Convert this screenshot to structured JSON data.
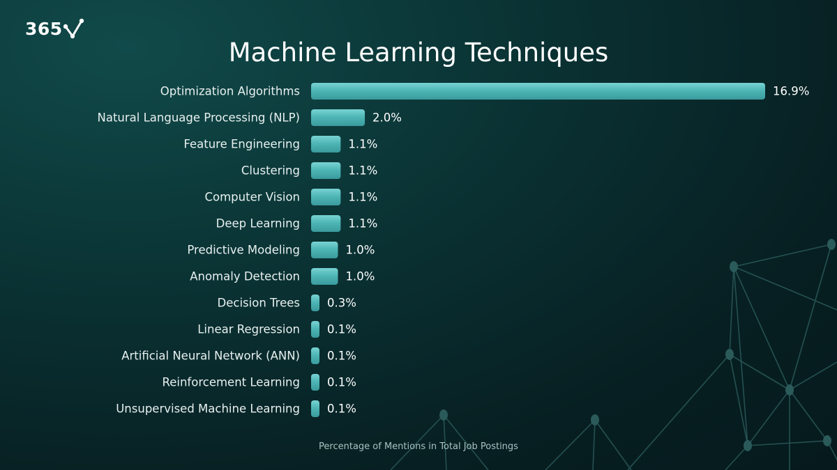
{
  "brand": {
    "logo_text": "365",
    "logo_icon": "check-network-icon"
  },
  "colors": {
    "bar": "#4fb7b7",
    "bar_highlight": "#73cfcf",
    "background": "#0b3536",
    "network_lines": "#2b5a5a"
  },
  "chart_data": {
    "type": "bar",
    "orientation": "horizontal",
    "title": "Machine Learning Techniques",
    "xlabel": "Percentage of Mentions in Total Job Postings",
    "ylabel": "",
    "xlim": [
      0,
      16.9
    ],
    "grid": false,
    "legend": "none",
    "categories": [
      "Optimization Algorithms",
      "Natural Language Processing (NLP)",
      "Feature Engineering",
      "Clustering",
      "Computer Vision",
      "Deep Learning",
      "Predictive Modeling",
      "Anomaly Detection",
      "Decision Trees",
      "Linear Regression",
      "Artificial Neural Network (ANN)",
      "Reinforcement Learning",
      "Unsupervised Machine Learning"
    ],
    "values": [
      16.9,
      2.0,
      1.1,
      1.1,
      1.1,
      1.1,
      1.0,
      1.0,
      0.3,
      0.1,
      0.1,
      0.1,
      0.1
    ],
    "value_labels": [
      "16.9%",
      "2.0%",
      "1.1%",
      "1.1%",
      "1.1%",
      "1.1%",
      "1.0%",
      "1.0%",
      "0.3%",
      "0.1%",
      "0.1%",
      "0.1%",
      "0.1%"
    ]
  }
}
